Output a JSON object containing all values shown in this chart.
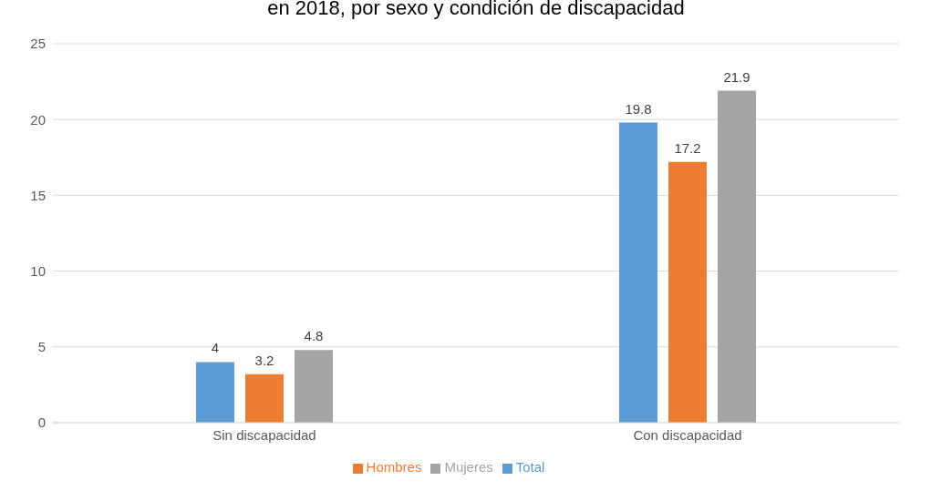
{
  "chart_data": {
    "type": "bar",
    "title": "en 2018, por sexo y condición de discapacidad",
    "categories": [
      "Sin discapacidad",
      "Con discapacidad"
    ],
    "series": [
      {
        "name": "Total",
        "color": "#5b9bd5",
        "values": [
          4,
          19.8
        ]
      },
      {
        "name": "Hombres",
        "color": "#ed7d31",
        "values": [
          3.2,
          17.2
        ]
      },
      {
        "name": "Mujeres",
        "color": "#a5a5a5",
        "values": [
          4.8,
          21.9
        ]
      }
    ],
    "ylim": [
      0,
      25
    ],
    "yticks": [
      0,
      5,
      10,
      15,
      20,
      25
    ],
    "grid": "y",
    "legend": "bottom",
    "data_labels": true
  }
}
